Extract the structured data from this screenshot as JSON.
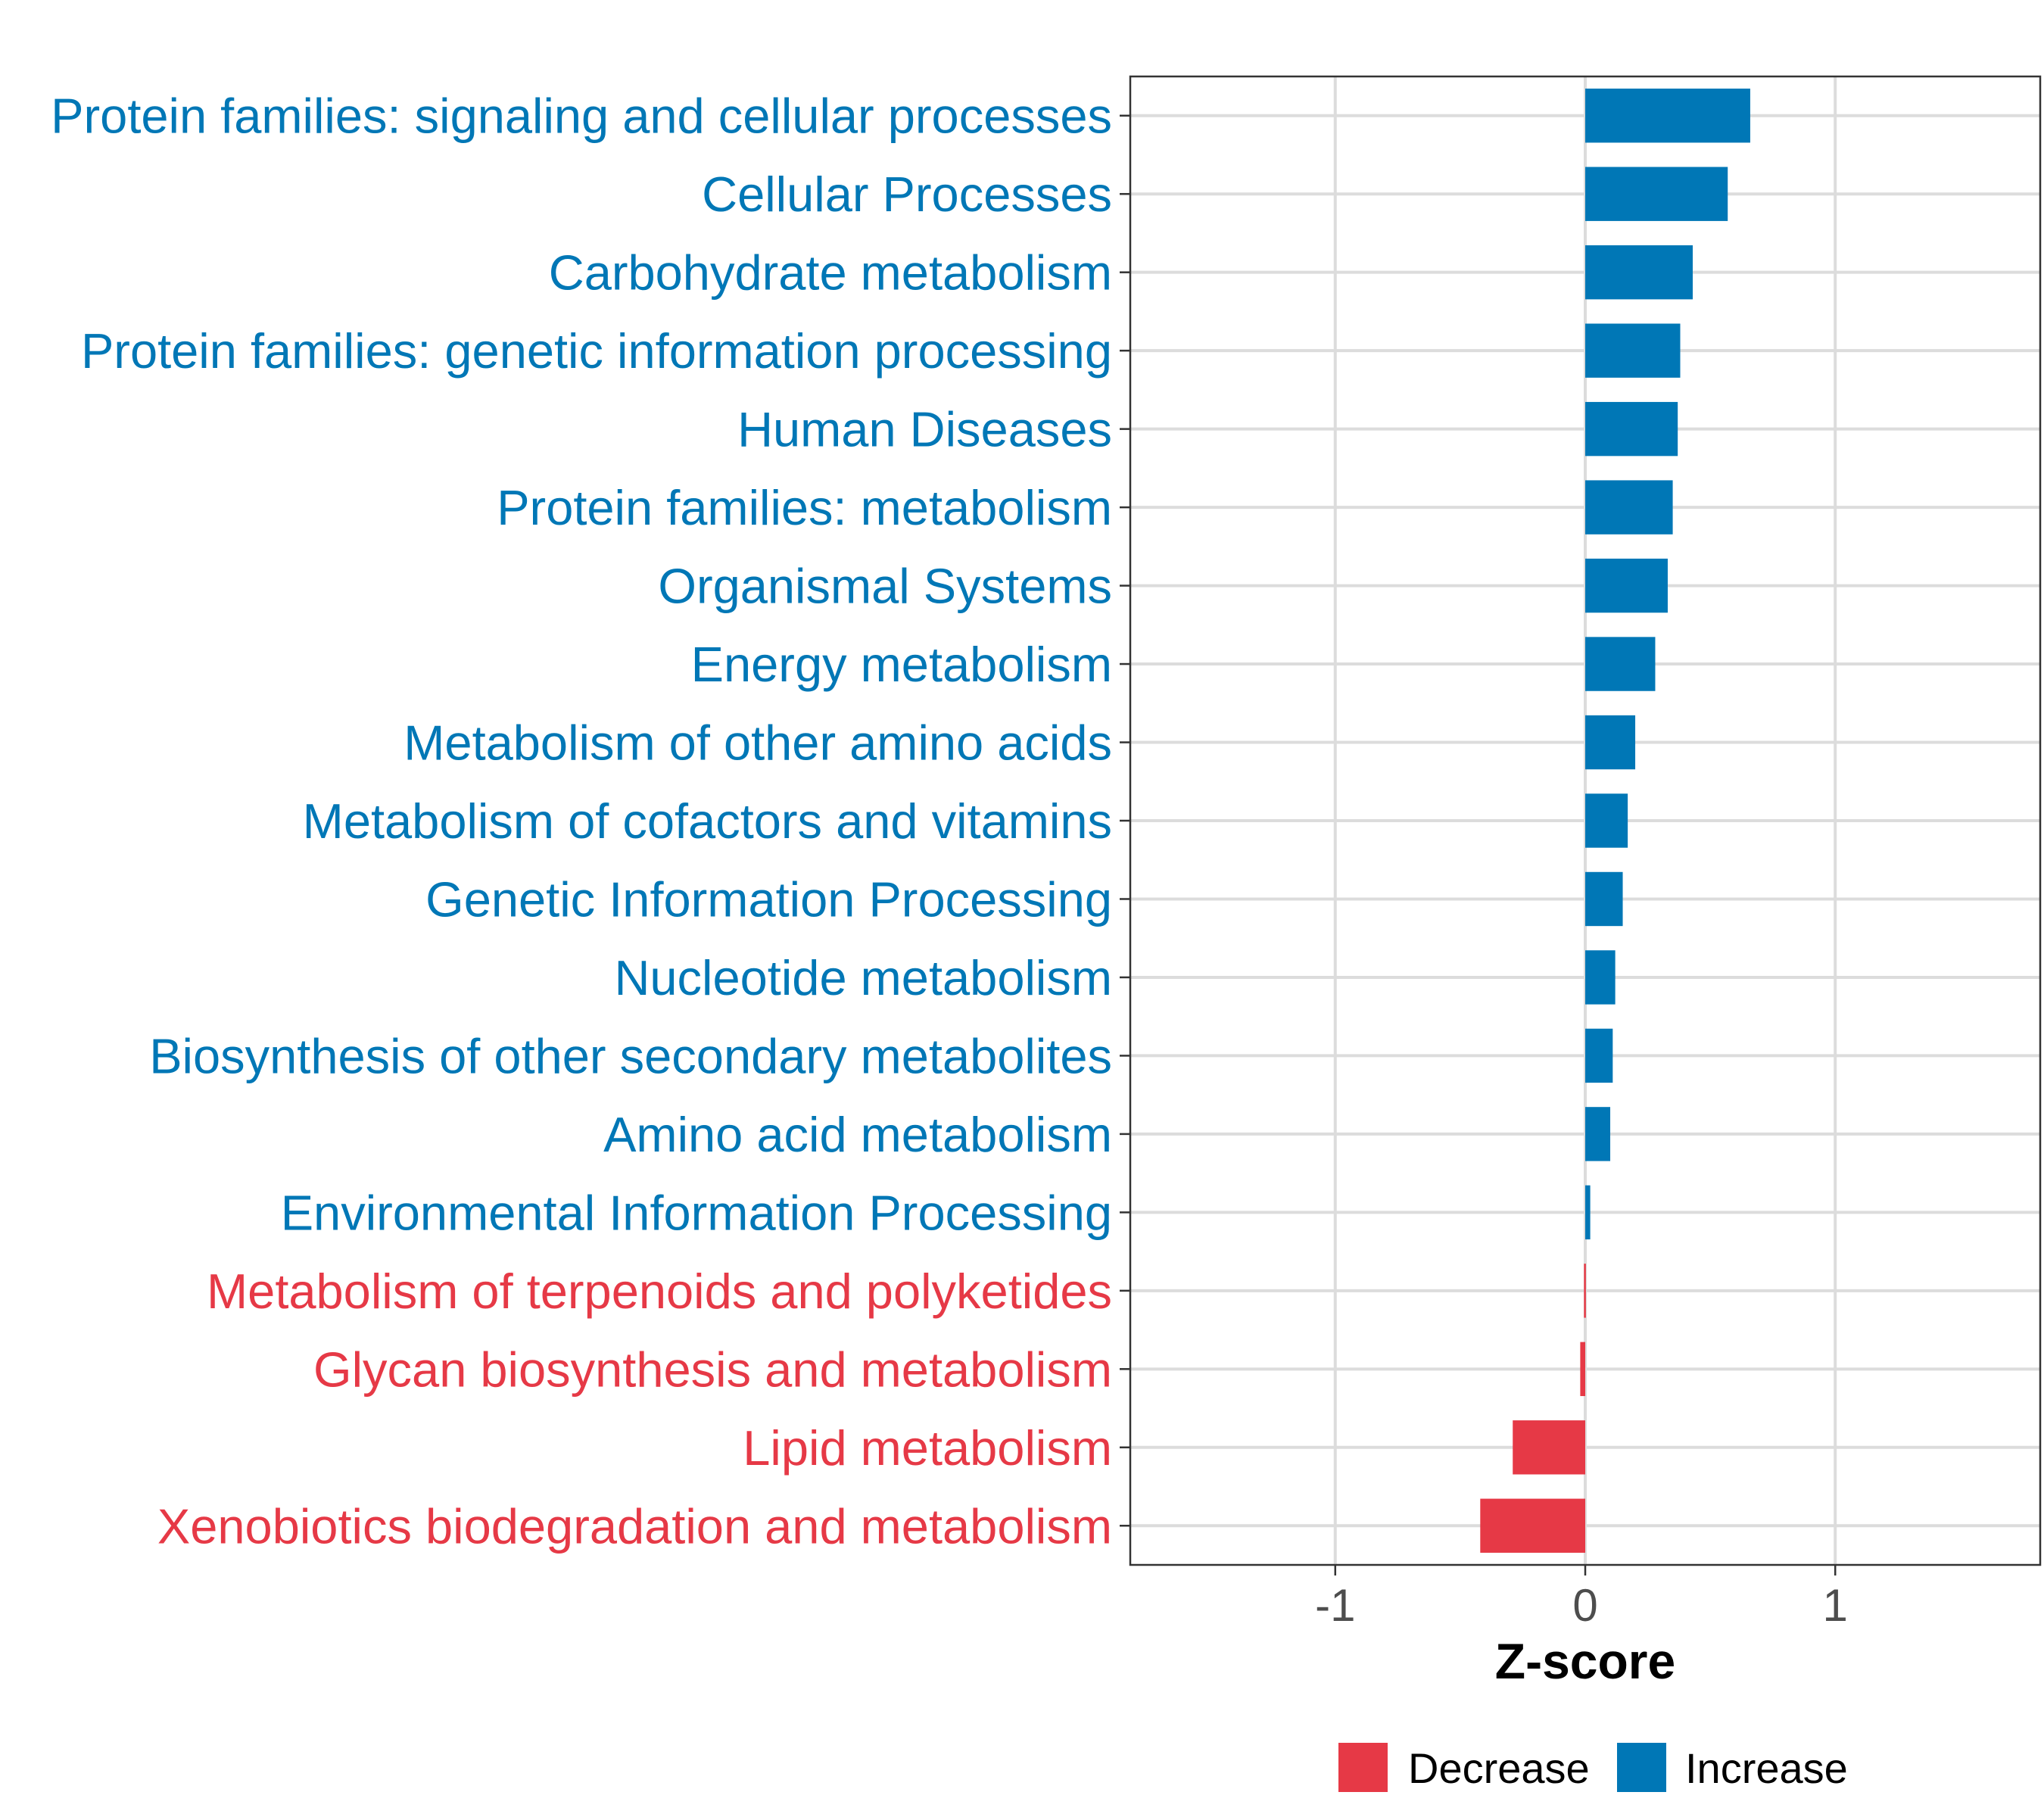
{
  "chart_data": {
    "type": "bar",
    "orientation": "horizontal",
    "categories": [
      "Protein families: signaling and cellular processes",
      "Cellular Processes",
      "Carbohydrate metabolism",
      "Protein families: genetic information processing",
      "Human Diseases",
      "Protein families: metabolism",
      "Organismal Systems",
      "Energy metabolism",
      "Metabolism of other amino acids",
      "Metabolism of cofactors and vitamins",
      "Genetic Information Processing",
      "Nucleotide metabolism",
      "Biosynthesis of other secondary metabolites",
      "Amino acid metabolism",
      "Environmental Information Processing",
      "Metabolism of terpenoids and polyketides",
      "Glycan biosynthesis and metabolism",
      "Lipid metabolism",
      "Xenobiotics biodegradation and metabolism"
    ],
    "values": [
      0.66,
      0.57,
      0.43,
      0.38,
      0.37,
      0.35,
      0.33,
      0.28,
      0.2,
      0.17,
      0.15,
      0.12,
      0.11,
      0.1,
      0.02,
      -0.005,
      -0.02,
      -0.29,
      -0.42
    ],
    "groups": [
      "Increase",
      "Increase",
      "Increase",
      "Increase",
      "Increase",
      "Increase",
      "Increase",
      "Increase",
      "Increase",
      "Increase",
      "Increase",
      "Increase",
      "Increase",
      "Increase",
      "Increase",
      "Decrease",
      "Decrease",
      "Decrease",
      "Decrease"
    ],
    "xlabel": "Z-score",
    "ylabel": "",
    "xlim": [
      -1.82,
      1.82
    ],
    "xticks": [
      -1,
      0,
      1
    ],
    "xtick_labels": [
      "-1",
      "0",
      "1"
    ],
    "grid": true,
    "legend": {
      "position": "bottom",
      "entries": [
        {
          "label": "Decrease",
          "color": "#e63946"
        },
        {
          "label": "Increase",
          "color": "#0077b6"
        }
      ]
    },
    "colors": {
      "Increase": "#0077b6",
      "Decrease": "#e63946"
    }
  }
}
